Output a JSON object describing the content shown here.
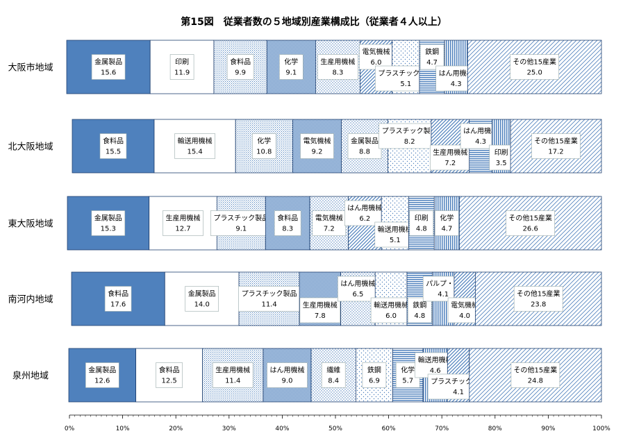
{
  "chart_data": {
    "type": "bar",
    "orientation": "horizontal",
    "stacked": "100%",
    "title": "第15図　従業者数の５地域別産業構成比（従業者４人以上）",
    "x_ticks": [
      "0%",
      "10%",
      "20%",
      "30%",
      "40%",
      "50%",
      "60%",
      "70%",
      "80%",
      "90%",
      "100%"
    ],
    "xlim": [
      0,
      100
    ],
    "grid": false,
    "legend": "none",
    "regions": [
      {
        "name": "大阪市地域",
        "segments": [
          {
            "label": "金属製品",
            "value": 15.6,
            "pattern": "solid"
          },
          {
            "label": "印刷",
            "value": 11.9,
            "pattern": "white"
          },
          {
            "label": "食料品",
            "value": 9.9,
            "pattern": "fine-dots"
          },
          {
            "label": "化学",
            "value": 9.1,
            "pattern": "dense-dots"
          },
          {
            "label": "生産用機械",
            "value": 8.3,
            "pattern": "dots"
          },
          {
            "label": "電気機械",
            "value": 6.0,
            "pattern": "diag"
          },
          {
            "label": "プラスチック製品",
            "value": 5.1,
            "pattern": "sparse-dots"
          },
          {
            "label": "鉄鋼",
            "value": 4.7,
            "pattern": "horiz"
          },
          {
            "label": "はん用機械",
            "value": 4.3,
            "pattern": "vert"
          },
          {
            "label": "その他15産業",
            "value": 25.0,
            "pattern": "diag-light"
          }
        ]
      },
      {
        "name": "北大阪地域",
        "segments": [
          {
            "label": "食料品",
            "value": 15.5,
            "pattern": "solid"
          },
          {
            "label": "輸送用機械",
            "value": 15.4,
            "pattern": "white"
          },
          {
            "label": "化学",
            "value": 10.8,
            "pattern": "fine-dots"
          },
          {
            "label": "電気機械",
            "value": 9.2,
            "pattern": "dense-dots"
          },
          {
            "label": "金属製品",
            "value": 8.8,
            "pattern": "dots"
          },
          {
            "label": "プラスチック製品",
            "value": 8.2,
            "pattern": "sparse-dots"
          },
          {
            "label": "生産用機械",
            "value": 7.2,
            "pattern": "diag"
          },
          {
            "label": "はん用機械",
            "value": 4.3,
            "pattern": "horiz"
          },
          {
            "label": "印刷",
            "value": 3.5,
            "pattern": "vert"
          },
          {
            "label": "その他15産業",
            "value": 17.2,
            "pattern": "diag-light"
          }
        ]
      },
      {
        "name": "東大阪地域",
        "segments": [
          {
            "label": "金属製品",
            "value": 15.3,
            "pattern": "solid"
          },
          {
            "label": "生産用機械",
            "value": 12.7,
            "pattern": "white"
          },
          {
            "label": "プラスチック製品",
            "value": 9.1,
            "pattern": "fine-dots"
          },
          {
            "label": "食料品",
            "value": 8.3,
            "pattern": "dense-dots"
          },
          {
            "label": "電気機械",
            "value": 7.2,
            "pattern": "dots"
          },
          {
            "label": "はん用機械",
            "value": 6.2,
            "pattern": "diag"
          },
          {
            "label": "輸送用機械",
            "value": 5.1,
            "pattern": "sparse-dots"
          },
          {
            "label": "印刷",
            "value": 4.8,
            "pattern": "horiz"
          },
          {
            "label": "化学",
            "value": 4.7,
            "pattern": "vert"
          },
          {
            "label": "その他15産業",
            "value": 26.6,
            "pattern": "diag-light"
          }
        ]
      },
      {
        "name": "南河内地域",
        "segments": [
          {
            "label": "食料品",
            "value": 17.6,
            "pattern": "solid"
          },
          {
            "label": "金属製品",
            "value": 14.0,
            "pattern": "white"
          },
          {
            "label": "プラスチック製品",
            "value": 11.4,
            "pattern": "fine-dots"
          },
          {
            "label": "生産用機械",
            "value": 7.8,
            "pattern": "dense-dots"
          },
          {
            "label": "はん用機械",
            "value": 6.5,
            "pattern": "dots"
          },
          {
            "label": "輸送用機械",
            "value": 6.0,
            "pattern": "sparse-dots"
          },
          {
            "label": "鉄鋼",
            "value": 4.8,
            "pattern": "horiz"
          },
          {
            "label": "パルプ・紙",
            "value": 4.1,
            "pattern": "vert"
          },
          {
            "label": "電気機械",
            "value": 4.0,
            "pattern": "diag"
          },
          {
            "label": "その他15産業",
            "value": 23.8,
            "pattern": "diag-light"
          }
        ]
      },
      {
        "name": "泉州地域",
        "segments": [
          {
            "label": "金属製品",
            "value": 12.6,
            "pattern": "solid"
          },
          {
            "label": "食料品",
            "value": 12.5,
            "pattern": "white"
          },
          {
            "label": "生産用機械",
            "value": 11.4,
            "pattern": "fine-dots"
          },
          {
            "label": "はん用機械",
            "value": 9.0,
            "pattern": "dense-dots"
          },
          {
            "label": "繊維",
            "value": 8.4,
            "pattern": "dots"
          },
          {
            "label": "鉄鋼",
            "value": 6.9,
            "pattern": "sparse-dots"
          },
          {
            "label": "化学",
            "value": 5.7,
            "pattern": "horiz"
          },
          {
            "label": "輸送用機械",
            "value": 4.6,
            "pattern": "vert"
          },
          {
            "label": "プラスチック製品",
            "value": 4.1,
            "pattern": "diag"
          },
          {
            "label": "その他15産業",
            "value": 24.8,
            "pattern": "diag-light"
          }
        ]
      }
    ]
  },
  "colors": {
    "solid": "#4f81bd",
    "pattern_ink": "#4f81bd",
    "border": "#1f3f6f",
    "text": "#000000",
    "background": "#ffffff"
  }
}
